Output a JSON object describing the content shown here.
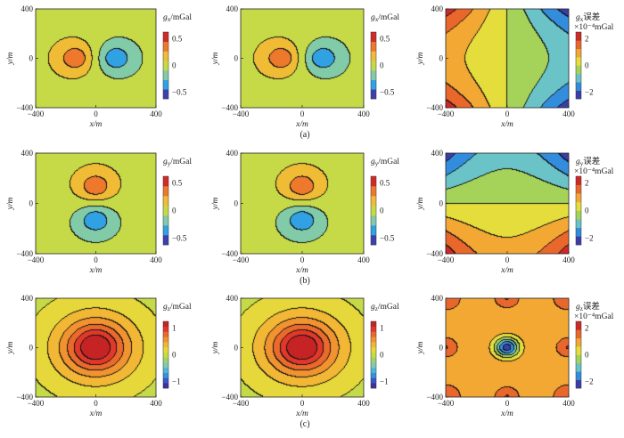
{
  "chart_data": {
    "type": "heatmap",
    "description_axes": {
      "x_label": "x/m",
      "y_label": "y/m",
      "x_ticks": [
        "−400",
        "0",
        "400"
      ],
      "y_ticks": [
        "−400",
        "0",
        "400"
      ],
      "xlim": [
        -400,
        400
      ],
      "ylim": [
        -400,
        400
      ]
    },
    "rows": [
      {
        "caption": "(a)",
        "panels": [
          {
            "component": "gx",
            "cbar_title": "/mGal",
            "cbar_sub": "x",
            "cbar_ticks": [
              "0.5",
              "0",
              "−0.5"
            ],
            "clim": [
              -0.6,
              0.6
            ]
          },
          {
            "component": "gx",
            "cbar_title": "/mGal",
            "cbar_sub": "x",
            "cbar_ticks": [
              "0.5",
              "0",
              "−0.5"
            ],
            "clim": [
              -0.6,
              0.6
            ]
          },
          {
            "component": "gx error",
            "cbar_title": "误差",
            "cbar_sub": "x",
            "cbar_unit": "×10⁻⁴mGal",
            "cbar_ticks": [
              "2",
              "0",
              "−2"
            ],
            "clim": [
              -2.5,
              2.5
            ]
          }
        ]
      },
      {
        "caption": "(b)",
        "panels": [
          {
            "component": "gy",
            "cbar_title": "/mGal",
            "cbar_sub": "y",
            "cbar_ticks": [
              "0.5",
              "0",
              "−0.5"
            ],
            "clim": [
              -0.6,
              0.6
            ]
          },
          {
            "component": "gy",
            "cbar_title": "/mGal",
            "cbar_sub": "y",
            "cbar_ticks": [
              "0.5",
              "0",
              "−0.5"
            ],
            "clim": [
              -0.6,
              0.6
            ]
          },
          {
            "component": "gy error",
            "cbar_title": "误差",
            "cbar_sub": "y",
            "cbar_unit": "×10⁻⁴mGal",
            "cbar_ticks": [
              "2",
              "0",
              "−2"
            ],
            "clim": [
              -2.5,
              2.5
            ]
          }
        ]
      },
      {
        "caption": "(c)",
        "panels": [
          {
            "component": "gz",
            "cbar_title": "/mGal",
            "cbar_sub": "z",
            "cbar_ticks": [
              "1",
              "0",
              "−1"
            ],
            "clim": [
              -1.1,
              1.1
            ]
          },
          {
            "component": "gz",
            "cbar_title": "/mGal",
            "cbar_sub": "z",
            "cbar_ticks": [
              "1",
              "0",
              "−1"
            ],
            "clim": [
              -1.1,
              1.1
            ]
          },
          {
            "component": "gz error",
            "cbar_title": "误差",
            "cbar_sub": "z",
            "cbar_unit": "×10⁻⁴mGal",
            "cbar_ticks": [
              "2",
              "0",
              "−2"
            ],
            "clim": [
              -2.5,
              2.5
            ]
          }
        ]
      }
    ],
    "colormap": [
      "#3a2282",
      "#3d52c8",
      "#2fa8e6",
      "#78c9c0",
      "#a8d453",
      "#e3e03c",
      "#f3b234",
      "#ef7d2c",
      "#e0352a",
      "#b81a22"
    ]
  }
}
